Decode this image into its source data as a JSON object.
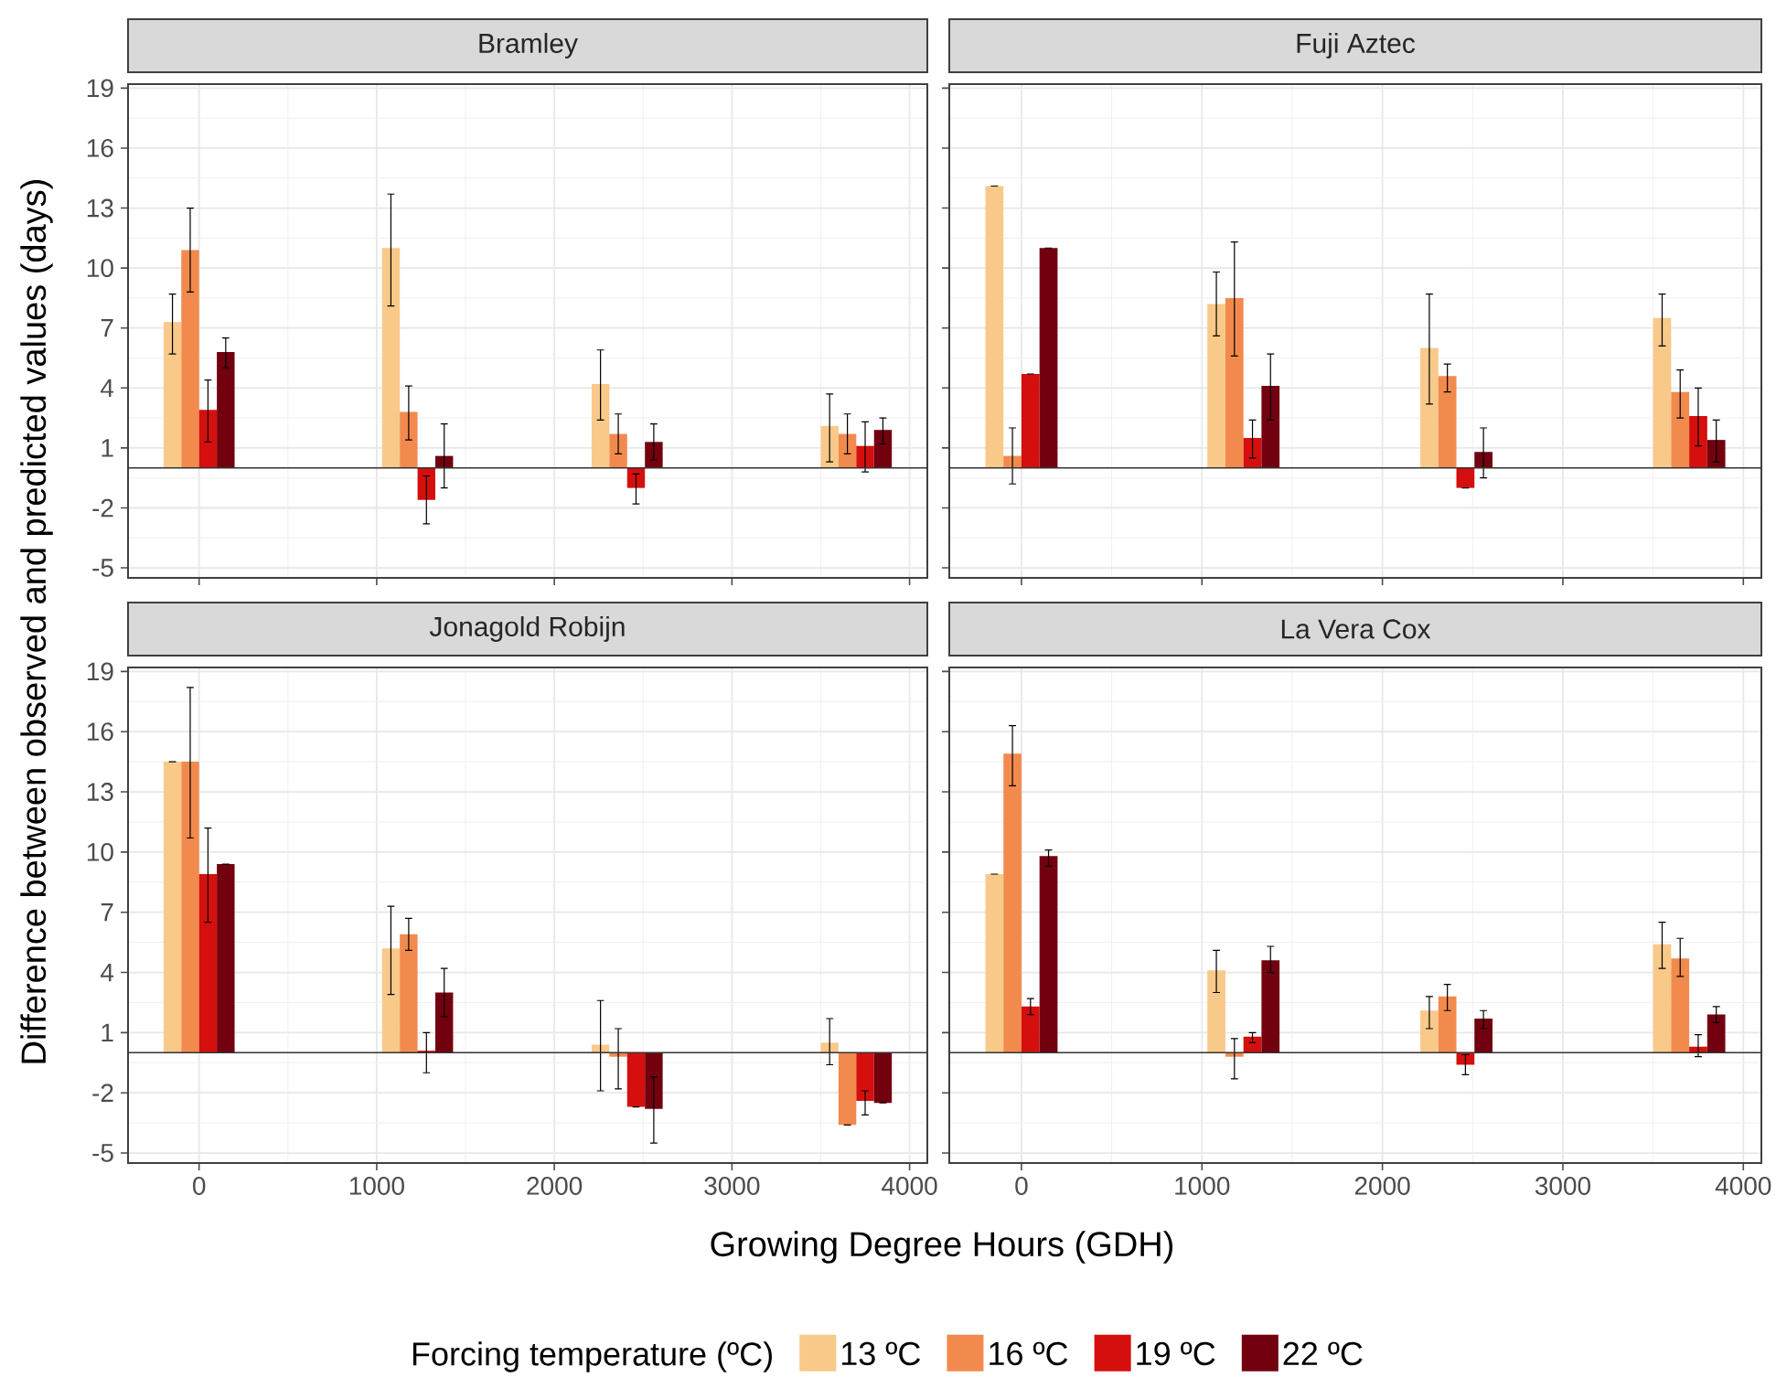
{
  "chart_data": [
    {
      "type": "bar",
      "title": "Bramley",
      "ylabel": "Difference between observed and predicted values (days)",
      "legend_title": "Forcing temperature (ºC)",
      "legend": "bottom",
      "x": [
        0,
        1230,
        2410,
        3700
      ],
      "xlim": [
        -400,
        4100
      ],
      "ylim": [
        -5.5,
        19.2
      ],
      "xticks": [
        0,
        1000,
        2000,
        3000,
        4000
      ],
      "yticks": [
        -5,
        -2,
        1,
        4,
        7,
        10,
        13,
        16,
        19
      ],
      "grid": true,
      "tick_labels": "y",
      "ref_lines": [
        {
          "axis": "y",
          "value": 0
        }
      ],
      "series": [
        {
          "name": "13 ºC",
          "color": "#f9c98a",
          "values": [
            7.3,
            11.0,
            4.2,
            2.1
          ],
          "errors": [
            [
              5.7,
              8.7
            ],
            [
              8.1,
              13.7
            ],
            [
              2.4,
              5.9
            ],
            [
              0.3,
              3.7
            ]
          ]
        },
        {
          "name": "16 ºC",
          "color": "#f28a4d",
          "values": [
            10.9,
            2.8,
            1.7,
            1.7
          ],
          "errors": [
            [
              8.8,
              13.0
            ],
            [
              1.4,
              4.1
            ],
            [
              0.7,
              2.7
            ],
            [
              0.7,
              2.7
            ]
          ]
        },
        {
          "name": "19 ºC",
          "color": "#d50f0d",
          "values": [
            2.9,
            -1.6,
            -1.0,
            1.1
          ],
          "errors": [
            [
              1.3,
              4.4
            ],
            [
              -2.8,
              -0.4
            ],
            [
              -1.8,
              -0.3
            ],
            [
              -0.2,
              2.3
            ]
          ]
        },
        {
          "name": "22 ºC",
          "color": "#72000f",
          "values": [
            5.8,
            0.6,
            1.3,
            1.9
          ],
          "errors": [
            [
              5.0,
              6.5
            ],
            [
              -1.0,
              2.2
            ],
            [
              0.4,
              2.2
            ],
            [
              1.2,
              2.5
            ]
          ]
        }
      ]
    },
    {
      "type": "bar",
      "title": "Fuji Aztec",
      "x": [
        0,
        1230,
        2410,
        3700
      ],
      "xlim": [
        -400,
        4100
      ],
      "ylim": [
        -5.5,
        19.2
      ],
      "xticks": [
        0,
        1000,
        2000,
        3000,
        4000
      ],
      "yticks": [
        -5,
        -2,
        1,
        4,
        7,
        10,
        13,
        16,
        19
      ],
      "grid": true,
      "tick_labels": false,
      "ref_lines": [
        {
          "axis": "y",
          "value": 0
        }
      ],
      "series": [
        {
          "color": "#f9c98a",
          "values": [
            14.1,
            8.2,
            6.0,
            7.5
          ],
          "errors": [
            0,
            [
              6.6,
              9.8
            ],
            [
              3.2,
              8.7
            ],
            [
              6.1,
              8.7
            ]
          ]
        },
        {
          "color": "#f28a4d",
          "values": [
            0.6,
            8.5,
            4.6,
            3.8
          ],
          "errors": [
            [
              -0.8,
              2.0
            ],
            [
              5.6,
              11.3
            ],
            [
              3.8,
              5.2
            ],
            [
              2.5,
              4.9
            ]
          ]
        },
        {
          "color": "#d50f0d",
          "values": [
            4.7,
            1.5,
            -1.0,
            2.6
          ],
          "errors": [
            0,
            [
              0.5,
              2.4
            ],
            0,
            [
              1.1,
              4.0
            ]
          ]
        },
        {
          "color": "#72000f",
          "values": [
            11.0,
            4.1,
            0.8,
            1.4
          ],
          "errors": [
            0,
            [
              2.4,
              5.7
            ],
            [
              -0.5,
              2.0
            ],
            [
              0.3,
              2.4
            ]
          ]
        }
      ]
    },
    {
      "type": "bar",
      "title": "Jonagold Robijn",
      "xlabel": "Growing Degree Hours (GDH)",
      "x": [
        0,
        1230,
        2410,
        3700
      ],
      "xlim": [
        -400,
        4100
      ],
      "ylim": [
        -5.5,
        19.2
      ],
      "xticks": [
        0,
        1000,
        2000,
        3000,
        4000
      ],
      "yticks": [
        -5,
        -2,
        1,
        4,
        7,
        10,
        13,
        16,
        19
      ],
      "grid": true,
      "ref_lines": [
        {
          "axis": "y",
          "value": 0
        }
      ],
      "series": [
        {
          "color": "#f9c98a",
          "values": [
            14.5,
            5.2,
            0.4,
            0.5
          ],
          "errors": [
            0,
            [
              2.9,
              7.3
            ],
            [
              -1.9,
              2.6
            ],
            [
              -0.6,
              1.7
            ]
          ]
        },
        {
          "color": "#f28a4d",
          "values": [
            14.5,
            5.9,
            -0.2,
            -3.6
          ],
          "errors": [
            [
              10.7,
              18.2
            ],
            [
              5.1,
              6.7
            ],
            [
              -1.8,
              1.2
            ],
            0
          ]
        },
        {
          "color": "#d50f0d",
          "values": [
            8.9,
            0.1,
            -2.7,
            -2.4
          ],
          "errors": [
            [
              6.5,
              11.2
            ],
            [
              -1.0,
              1.0
            ],
            0,
            [
              -3.1,
              -1.9
            ]
          ]
        },
        {
          "color": "#72000f",
          "values": [
            9.4,
            3.0,
            -2.8,
            -2.5
          ],
          "errors": [
            0,
            [
              1.8,
              4.2
            ],
            [
              -4.5,
              -1.2
            ],
            0
          ]
        }
      ]
    },
    {
      "type": "bar",
      "title": "La Vera Cox",
      "x": [
        0,
        1230,
        2410,
        3700
      ],
      "xlim": [
        -400,
        4100
      ],
      "ylim": [
        -5.5,
        19.2
      ],
      "xticks": [
        0,
        1000,
        2000,
        3000,
        4000
      ],
      "yticks": [
        -5,
        -2,
        1,
        4,
        7,
        10,
        13,
        16,
        19
      ],
      "grid": true,
      "tick_labels": "x",
      "ref_lines": [
        {
          "axis": "y",
          "value": 0
        }
      ],
      "series": [
        {
          "color": "#f9c98a",
          "values": [
            8.9,
            4.1,
            2.1,
            5.4
          ],
          "errors": [
            0,
            [
              3.0,
              5.1
            ],
            [
              1.2,
              2.8
            ],
            [
              4.2,
              6.5
            ]
          ]
        },
        {
          "color": "#f28a4d",
          "values": [
            14.9,
            -0.2,
            2.8,
            4.7
          ],
          "errors": [
            [
              13.3,
              16.3
            ],
            [
              -1.3,
              0.7
            ],
            [
              2.1,
              3.4
            ],
            [
              3.8,
              5.7
            ]
          ]
        },
        {
          "color": "#d50f0d",
          "values": [
            2.3,
            0.8,
            -0.6,
            0.3
          ],
          "errors": [
            [
              1.9,
              2.7
            ],
            [
              0.5,
              1.0
            ],
            [
              -1.1,
              -0.1
            ],
            [
              -0.2,
              0.9
            ]
          ]
        },
        {
          "color": "#72000f",
          "values": [
            9.8,
            4.6,
            1.7,
            1.9
          ],
          "errors": [
            [
              9.3,
              10.1
            ],
            [
              4.0,
              5.3
            ],
            [
              1.2,
              2.1
            ],
            [
              1.5,
              2.3
            ]
          ]
        }
      ]
    }
  ]
}
